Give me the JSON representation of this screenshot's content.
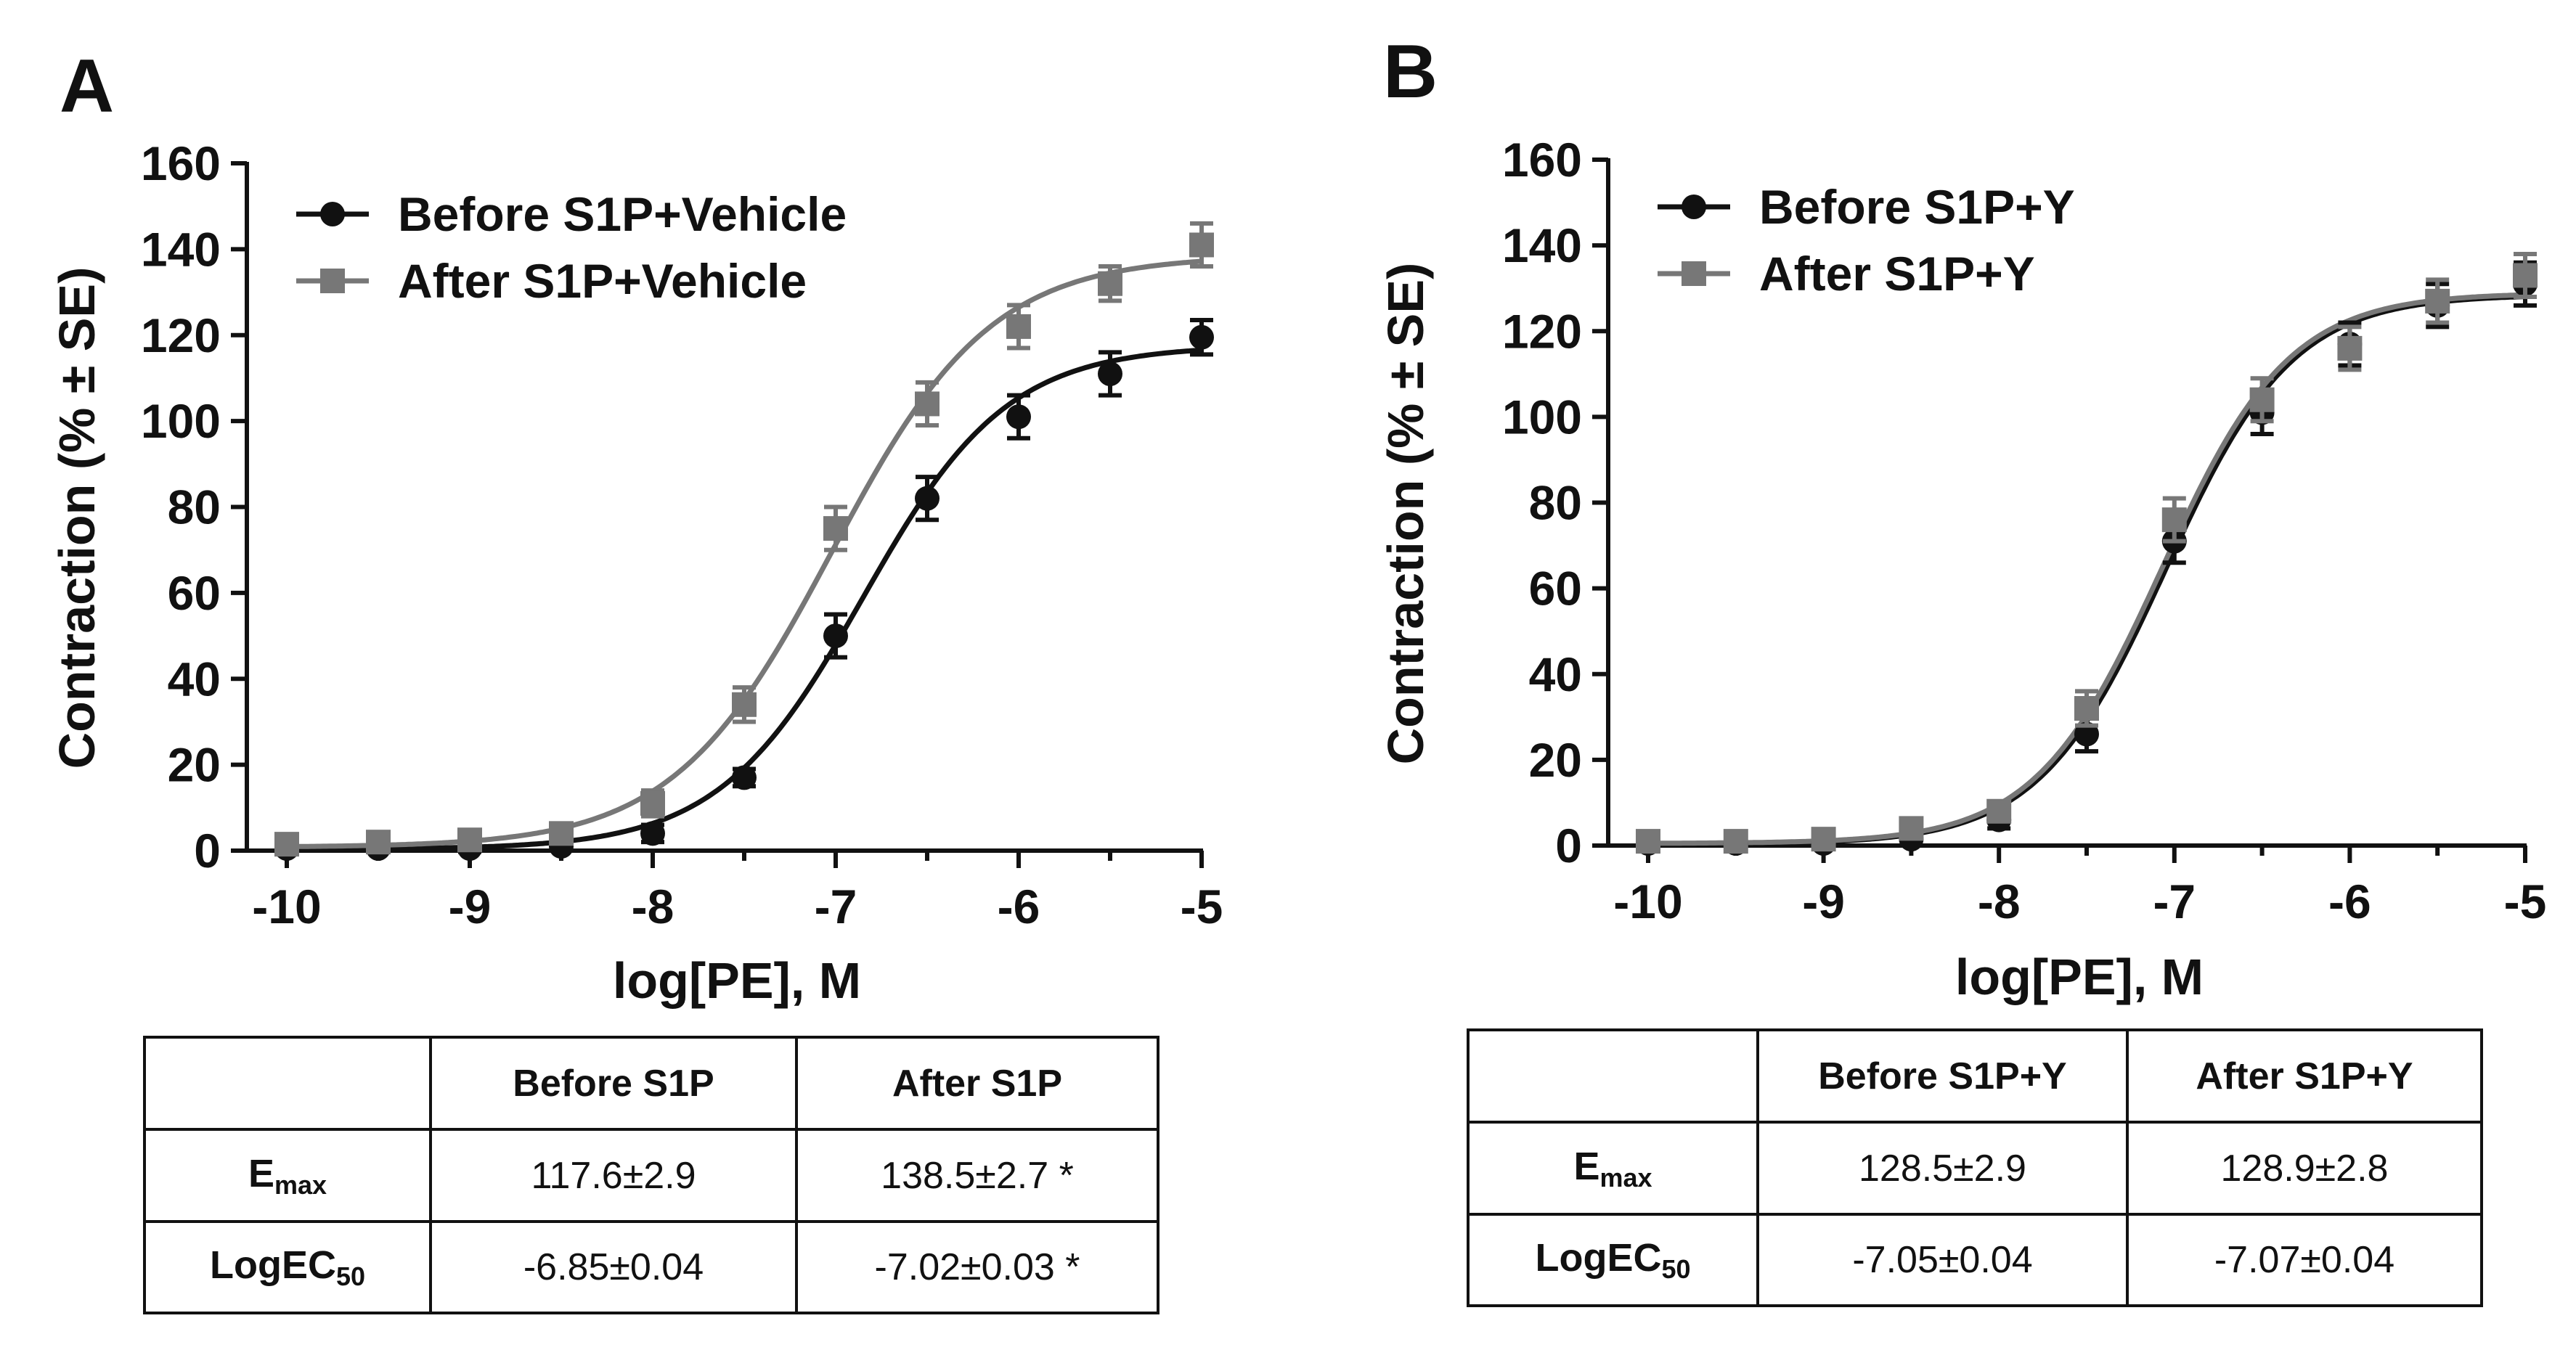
{
  "panels": {
    "A": {
      "letter": "A",
      "ylabel": "Contraction (% ± SE)",
      "xlabel": "log[PE], M",
      "legend": [
        "Before S1P+Vehicle",
        "After S1P+Vehicle"
      ],
      "table": {
        "col1": "Before S1P",
        "col2": "After S1P",
        "r1_main": "E",
        "r1_sub": "max",
        "r1_c1": "117.6±2.9",
        "r1_c2": "138.5±2.7 *",
        "r2_main": "LogEC",
        "r2_sub": "50",
        "r2_c1": "-6.85±0.04",
        "r2_c2": "-7.02±0.03 *"
      }
    },
    "B": {
      "letter": "B",
      "ylabel": "Contraction (% ± SE)",
      "xlabel": "log[PE], M",
      "legend": [
        "Before S1P+Y",
        "After S1P+Y"
      ],
      "table": {
        "col1": "Before S1P+Y",
        "col2": "After S1P+Y",
        "r1_main": "E",
        "r1_sub": "max",
        "r1_c1": "128.5±2.9",
        "r1_c2": "128.9±2.8",
        "r2_main": "LogEC",
        "r2_sub": "50",
        "r2_c1": "-7.05±0.04",
        "r2_c2": "-7.07±0.04"
      }
    }
  },
  "chart_data": [
    {
      "type": "scatter",
      "panel": "A",
      "xlabel": "log[PE], M",
      "ylabel": "Contraction (% ± SE)",
      "xlim": [
        -10,
        -5
      ],
      "ylim": [
        0,
        160
      ],
      "xticks": [
        -10,
        -9,
        -8,
        -7,
        -6,
        -5
      ],
      "xtick_labels": [
        "-10",
        "-9",
        "-8",
        "-7",
        "-6",
        "-5"
      ],
      "yticks": [
        0,
        20,
        40,
        60,
        80,
        100,
        120,
        140,
        160
      ],
      "ytick_labels": [
        "0",
        "20",
        "40",
        "60",
        "80",
        "100",
        "120",
        "140",
        "160"
      ],
      "legend_position": "top-left",
      "x": [
        -10,
        -9.5,
        -9,
        -8.5,
        -8,
        -7.5,
        -7,
        -6.5,
        -6,
        -5.5,
        -5
      ],
      "series": [
        {
          "name": "Before S1P+Vehicle",
          "marker": "circle",
          "color": "#111111",
          "values": [
            0.5,
            0.5,
            0.5,
            1,
            4,
            17,
            50,
            82,
            101,
            111,
            119.5
          ],
          "errors": [
            0.8,
            0.8,
            0.8,
            1,
            2,
            2,
            5,
            5,
            5,
            5,
            4
          ],
          "fit": {
            "bottom": 0.3,
            "top": 117.6,
            "logec50": -6.85,
            "hill": 1.1
          }
        },
        {
          "name": "After S1P+Vehicle",
          "marker": "square",
          "color": "#777777",
          "values": [
            1.5,
            2,
            2.5,
            4,
            11,
            34,
            75,
            104,
            122,
            132,
            141
          ],
          "errors": [
            1.5,
            1.5,
            1.5,
            2,
            3,
            4,
            5,
            5,
            5,
            4,
            5
          ],
          "fit": {
            "bottom": 0.8,
            "top": 138.5,
            "logec50": -7.02,
            "hill": 1.0
          }
        }
      ]
    },
    {
      "type": "scatter",
      "panel": "B",
      "xlabel": "log[PE], M",
      "ylabel": "Contraction (% ± SE)",
      "xlim": [
        -10,
        -5
      ],
      "ylim": [
        0,
        160
      ],
      "xticks": [
        -10,
        -9,
        -8,
        -7,
        -6,
        -5
      ],
      "xtick_labels": [
        "-10",
        "-9",
        "-8",
        "-7",
        "-6",
        "-5"
      ],
      "yticks": [
        0,
        20,
        40,
        60,
        80,
        100,
        120,
        140,
        160
      ],
      "ytick_labels": [
        "0",
        "20",
        "40",
        "60",
        "80",
        "100",
        "120",
        "140",
        "160"
      ],
      "legend_position": "top-left",
      "x": [
        -10,
        -9.5,
        -9,
        -8.5,
        -8,
        -7.5,
        -7,
        -6.5,
        -6,
        -5.5,
        -5
      ],
      "series": [
        {
          "name": "Before S1P+Y",
          "marker": "circle",
          "color": "#111111",
          "values": [
            0.5,
            0.5,
            0.5,
            1.5,
            6,
            26,
            71,
            101,
            117,
            126,
            131
          ],
          "errors": [
            1,
            1,
            1,
            1.5,
            2,
            4,
            5,
            5,
            5,
            5,
            5
          ],
          "fit": {
            "bottom": 0.3,
            "top": 128.5,
            "logec50": -7.05,
            "hill": 1.2
          }
        },
        {
          "name": "After S1P+Y",
          "marker": "square",
          "color": "#777777",
          "values": [
            1,
            1,
            1.5,
            4,
            8,
            32,
            76,
            104,
            116,
            127,
            133
          ],
          "errors": [
            1,
            1,
            1,
            1.5,
            2,
            4,
            5,
            5,
            5,
            5,
            5
          ],
          "fit": {
            "bottom": 0.5,
            "top": 128.9,
            "logec50": -7.07,
            "hill": 1.2
          }
        }
      ]
    }
  ]
}
